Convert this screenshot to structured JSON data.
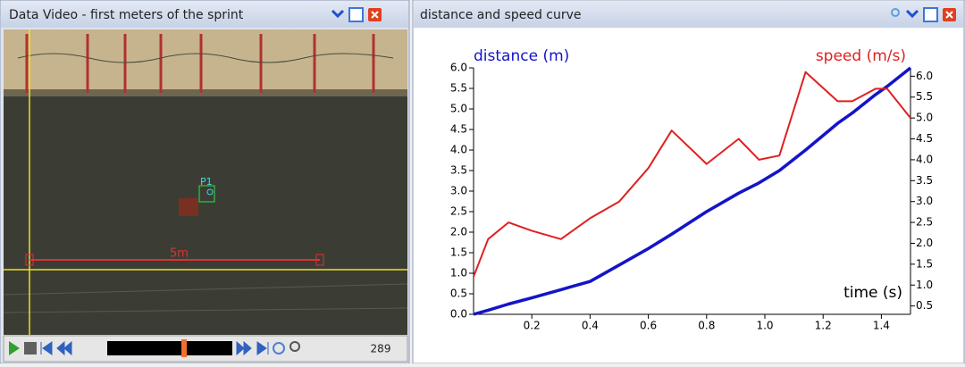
{
  "video_panel": {
    "title": "Data Video - first meters of the sprint",
    "distance_label": "5m",
    "marker_label": "P1",
    "frame": "289"
  },
  "chart_panel": {
    "title": "distance and speed curve"
  },
  "chart_data": {
    "type": "line",
    "xlabel": "time (s)",
    "ylabel": "distance (m)",
    "y2label": "speed (m/s)",
    "x": [
      0,
      0.05,
      0.12,
      0.2,
      0.3,
      0.4,
      0.5,
      0.6,
      0.68,
      0.8,
      0.91,
      0.98,
      1.05,
      1.14,
      1.25,
      1.3,
      1.38,
      1.42,
      1.5
    ],
    "series": [
      {
        "name": "distance (m)",
        "color": "#1414c8",
        "axis": "y",
        "values": [
          0.0,
          0.1,
          0.25,
          0.4,
          0.6,
          0.8,
          1.2,
          1.6,
          1.95,
          2.5,
          2.95,
          3.2,
          3.5,
          4.0,
          4.65,
          4.9,
          5.35,
          5.55,
          6.0
        ]
      },
      {
        "name": "speed (m/s)",
        "color": "#e02020",
        "axis": "y2",
        "values": [
          1.2,
          2.1,
          2.5,
          2.3,
          2.1,
          2.6,
          3.0,
          3.8,
          4.7,
          3.9,
          4.5,
          4.0,
          4.1,
          6.1,
          5.4,
          5.4,
          5.7,
          5.7,
          5.0
        ]
      }
    ],
    "xlim": [
      0,
      1.5
    ],
    "ylim": [
      0,
      6
    ],
    "y2lim": [
      0.3,
      6.2
    ],
    "xticks": [
      0.2,
      0.4,
      0.6,
      0.8,
      {
        "value": 1,
        "label": "1.0"
      },
      1.2,
      1.4
    ],
    "yticks": [
      {
        "value": 0,
        "label": "0.0"
      },
      0.5,
      {
        "value": 1,
        "label": "1.0"
      },
      1.5,
      {
        "value": 2,
        "label": "2.0"
      },
      2.5,
      {
        "value": 3,
        "label": "3.0"
      },
      3.5,
      {
        "value": 4,
        "label": "4.0"
      },
      4.5,
      {
        "value": 5,
        "label": "5.0"
      },
      5.5,
      {
        "value": 6,
        "label": "6.0"
      }
    ],
    "y2ticks": [
      0.5,
      {
        "value": 1,
        "label": "1.0"
      },
      1.5,
      {
        "value": 2,
        "label": "2.0"
      },
      2.5,
      {
        "value": 3,
        "label": "3.0"
      },
      3.5,
      {
        "value": 4,
        "label": "4.0"
      },
      4.5,
      {
        "value": 5,
        "label": "5.0"
      },
      5.5,
      {
        "value": 6,
        "label": "6.0"
      }
    ]
  }
}
